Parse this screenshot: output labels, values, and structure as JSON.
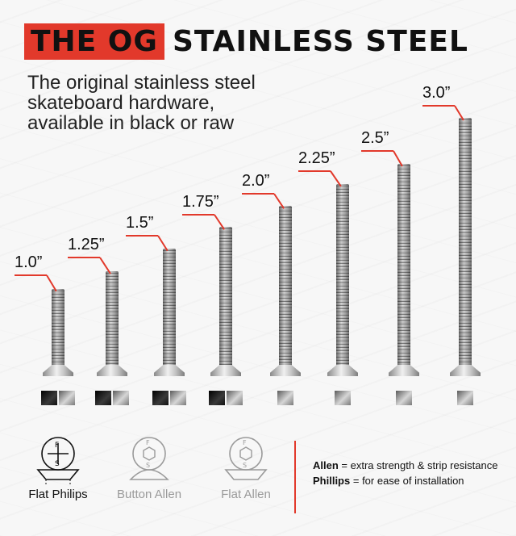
{
  "title": {
    "highlight": "THE OG",
    "rest": "STAINLESS STEEL"
  },
  "subtitle": [
    "The original stainless steel",
    "skateboard hardware,",
    "available in black or raw"
  ],
  "screws": [
    {
      "length": "1.0”",
      "finishes": [
        "black",
        "raw"
      ]
    },
    {
      "length": "1.25”",
      "finishes": [
        "black",
        "raw"
      ]
    },
    {
      "length": "1.5”",
      "finishes": [
        "black",
        "raw"
      ]
    },
    {
      "length": "1.75”",
      "finishes": [
        "black",
        "raw"
      ]
    },
    {
      "length": "2.0”",
      "finishes": [
        "raw"
      ]
    },
    {
      "length": "2.25”",
      "finishes": [
        "raw"
      ]
    },
    {
      "length": "2.5”",
      "finishes": [
        "raw"
      ]
    },
    {
      "length": "3.0”",
      "finishes": [
        "raw"
      ]
    }
  ],
  "head_types": [
    {
      "label": "Flat Philips",
      "icon": "flat-philips-icon",
      "active": true
    },
    {
      "label": "Button Allen",
      "icon": "button-allen-icon",
      "active": false
    },
    {
      "label": "Flat Allen",
      "icon": "flat-allen-icon",
      "active": false
    }
  ],
  "legend": {
    "allen_term": "Allen",
    "allen_desc": "= extra strength & strip resistance",
    "phillips_term": "Phillips",
    "phillips_desc": "= for ease of installation"
  },
  "colors": {
    "accent": "#e2392b",
    "text": "#111111",
    "muted": "#9a9a9a"
  }
}
